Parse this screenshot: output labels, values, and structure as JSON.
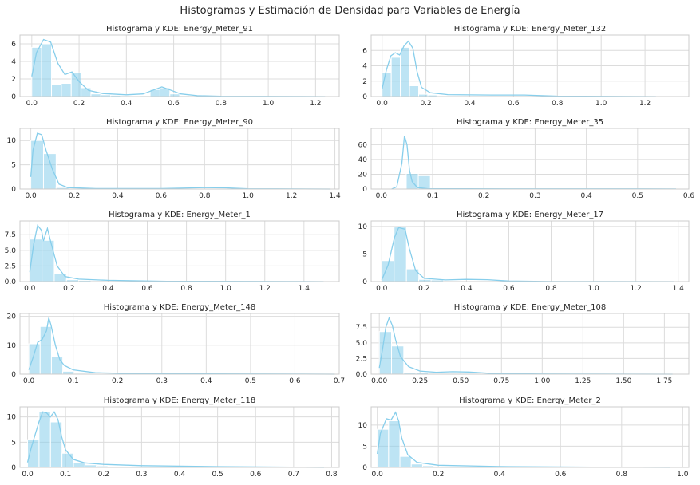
{
  "title": "Histogramas y Estimación de Densidad para Variables de Energía",
  "colors": {
    "bar": "#87ceeb",
    "bar_edge": "#ffffff",
    "kde": "#87ceeb",
    "grid": "#dcdcdc",
    "axis_edge": "#cccccc"
  },
  "chart_data": [
    {
      "type": "bar",
      "title": "Histograma y KDE: Energy_Meter_91",
      "xticks": [
        "0.0",
        "0.2",
        "0.4",
        "0.6",
        "0.8",
        "1.0",
        "1.2"
      ],
      "xlim": [
        -0.05,
        1.3
      ],
      "yticks": [
        "0",
        "2",
        "4",
        "6"
      ],
      "ylim": [
        0,
        7
      ],
      "bins": {
        "start": 0,
        "width": 0.0417,
        "values": [
          5.6,
          6.0,
          1.4,
          1.5,
          2.7,
          1.0,
          0.3,
          0.2,
          0.15,
          0.1,
          0.05,
          0.1,
          0.8,
          1.0,
          0.3,
          0.1
        ]
      },
      "kde": [
        [
          0,
          2.3
        ],
        [
          0.02,
          5.0
        ],
        [
          0.05,
          6.5
        ],
        [
          0.08,
          6.2
        ],
        [
          0.11,
          3.8
        ],
        [
          0.14,
          2.5
        ],
        [
          0.17,
          2.8
        ],
        [
          0.2,
          1.7
        ],
        [
          0.24,
          0.7
        ],
        [
          0.3,
          0.35
        ],
        [
          0.4,
          0.2
        ],
        [
          0.47,
          0.3
        ],
        [
          0.52,
          0.8
        ],
        [
          0.55,
          1.1
        ],
        [
          0.58,
          0.8
        ],
        [
          0.63,
          0.3
        ],
        [
          0.7,
          0.1
        ],
        [
          0.8,
          0.03
        ],
        [
          1.24,
          0
        ]
      ]
    },
    {
      "type": "bar",
      "title": "Histograma y KDE: Energy_Meter_132",
      "xticks": [
        "0.0",
        "0.2",
        "0.4",
        "0.6",
        "0.8",
        "1.0",
        "1.2"
      ],
      "xlim": [
        -0.05,
        1.4
      ],
      "yticks": [
        "0",
        "2",
        "4",
        "6"
      ],
      "ylim": [
        0,
        8
      ],
      "bins": {
        "start": 0,
        "width": 0.0417,
        "values": [
          3.1,
          5.1,
          6.4,
          1.4,
          0.3,
          0.2,
          0.1,
          0.1
        ]
      },
      "kde": [
        [
          0,
          1.0
        ],
        [
          0.02,
          3.5
        ],
        [
          0.04,
          5.3
        ],
        [
          0.06,
          5.7
        ],
        [
          0.08,
          5.4
        ],
        [
          0.1,
          6.6
        ],
        [
          0.12,
          7.2
        ],
        [
          0.14,
          6.3
        ],
        [
          0.16,
          3.2
        ],
        [
          0.18,
          1.2
        ],
        [
          0.22,
          0.5
        ],
        [
          0.3,
          0.25
        ],
        [
          0.5,
          0.2
        ],
        [
          0.65,
          0.2
        ],
        [
          0.8,
          0.05
        ],
        [
          1.25,
          0
        ]
      ]
    },
    {
      "type": "bar",
      "title": "Histograma y KDE: Energy_Meter_90",
      "xticks": [
        "0.0",
        "0.2",
        "0.4",
        "0.6",
        "0.8",
        "1.0",
        "1.2",
        "1.4"
      ],
      "xlim": [
        -0.05,
        1.42
      ],
      "yticks": [
        "0",
        "5",
        "10"
      ],
      "ylim": [
        0,
        12.5
      ],
      "bins": {
        "start": 0,
        "width": 0.0583,
        "values": [
          10.0,
          7.3,
          0.3,
          0.05
        ]
      },
      "kde": [
        [
          0,
          2.5
        ],
        [
          0.01,
          8
        ],
        [
          0.03,
          11.5
        ],
        [
          0.05,
          11.2
        ],
        [
          0.07,
          8
        ],
        [
          0.1,
          4
        ],
        [
          0.13,
          1
        ],
        [
          0.17,
          0.3
        ],
        [
          0.3,
          0.1
        ],
        [
          0.6,
          0.1
        ],
        [
          0.8,
          0.3
        ],
        [
          0.9,
          0.25
        ],
        [
          1.0,
          0.05
        ],
        [
          1.38,
          0
        ]
      ]
    },
    {
      "type": "bar",
      "title": "Histograma y KDE: Energy_Meter_35",
      "xticks": [
        "0.0",
        "0.1",
        "0.2",
        "0.3",
        "0.4",
        "0.5",
        "0.6"
      ],
      "xlim": [
        -0.02,
        0.6
      ],
      "yticks": [
        "0",
        "20",
        "40",
        "60"
      ],
      "ylim": [
        0,
        82
      ],
      "bins": {
        "start": 0.025,
        "width": 0.0235,
        "values": [
          1.0,
          21.0,
          18.0,
          0.5
        ]
      },
      "kde": [
        [
          0.02,
          0
        ],
        [
          0.03,
          3
        ],
        [
          0.04,
          35
        ],
        [
          0.045,
          72
        ],
        [
          0.05,
          60
        ],
        [
          0.055,
          25
        ],
        [
          0.06,
          10
        ],
        [
          0.07,
          2
        ],
        [
          0.09,
          0.5
        ],
        [
          0.3,
          0.2
        ],
        [
          0.5,
          0.2
        ],
        [
          0.575,
          0.1
        ]
      ]
    },
    {
      "type": "bar",
      "title": "Histograma y KDE: Energy_Meter_1",
      "xticks": [
        "0.0",
        "0.2",
        "0.4",
        "0.6",
        "0.8",
        "1.0",
        "1.2",
        "1.4"
      ],
      "xlim": [
        -0.05,
        1.58
      ],
      "yticks": [
        "0.0",
        "2.5",
        "5.0",
        "7.5"
      ],
      "ylim": [
        0,
        9.7
      ],
      "bins": {
        "start": 0,
        "width": 0.0625,
        "values": [
          6.8,
          6.6,
          1.3,
          0.3,
          0.2
        ]
      },
      "kde": [
        [
          0,
          1.5
        ],
        [
          0.02,
          6
        ],
        [
          0.04,
          9.0
        ],
        [
          0.06,
          8.2
        ],
        [
          0.07,
          6.5
        ],
        [
          0.08,
          7.5
        ],
        [
          0.09,
          8.5
        ],
        [
          0.11,
          6
        ],
        [
          0.14,
          2.5
        ],
        [
          0.18,
          0.8
        ],
        [
          0.25,
          0.4
        ],
        [
          0.4,
          0.2
        ],
        [
          0.7,
          0.05
        ],
        [
          1.5,
          0
        ]
      ]
    },
    {
      "type": "bar",
      "title": "Histograma y KDE: Energy_Meter_17",
      "xticks": [
        "0.0",
        "0.2",
        "0.4",
        "0.6",
        "0.8",
        "1.0",
        "1.2",
        "1.4"
      ],
      "xlim": [
        -0.05,
        1.45
      ],
      "yticks": [
        "0",
        "5",
        "10"
      ],
      "ylim": [
        0,
        11
      ],
      "bins": {
        "start": 0,
        "width": 0.0583,
        "values": [
          3.8,
          9.9,
          2.3,
          0.4,
          0.3
        ]
      },
      "kde": [
        [
          0,
          0.3
        ],
        [
          0.03,
          3
        ],
        [
          0.06,
          8
        ],
        [
          0.08,
          9.8
        ],
        [
          0.11,
          9.5
        ],
        [
          0.13,
          6
        ],
        [
          0.16,
          2
        ],
        [
          0.2,
          0.6
        ],
        [
          0.3,
          0.3
        ],
        [
          0.4,
          0.4
        ],
        [
          0.5,
          0.35
        ],
        [
          0.6,
          0.1
        ],
        [
          0.8,
          0.02
        ],
        [
          1.38,
          0
        ]
      ]
    },
    {
      "type": "bar",
      "title": "Histograma y KDE: Energy_Meter_148",
      "xticks": [
        "0.0",
        "0.1",
        "0.2",
        "0.3",
        "0.4",
        "0.5",
        "0.6",
        "0.7"
      ],
      "xlim": [
        -0.02,
        0.7
      ],
      "yticks": [
        "0",
        "10",
        "20"
      ],
      "ylim": [
        0,
        21
      ],
      "bins": {
        "start": 0,
        "width": 0.0255,
        "values": [
          10.5,
          16.5,
          6.2,
          1.0,
          0.3,
          0.2,
          0.1
        ]
      },
      "kde": [
        [
          0,
          1.5
        ],
        [
          0.01,
          6
        ],
        [
          0.02,
          11
        ],
        [
          0.03,
          12
        ],
        [
          0.04,
          15
        ],
        [
          0.045,
          19.5
        ],
        [
          0.05,
          17
        ],
        [
          0.06,
          10
        ],
        [
          0.07,
          5
        ],
        [
          0.08,
          3
        ],
        [
          0.1,
          1.5
        ],
        [
          0.15,
          0.5
        ],
        [
          0.25,
          0.2
        ],
        [
          0.4,
          0.1
        ],
        [
          0.69,
          0
        ]
      ]
    },
    {
      "type": "bar",
      "title": "Histograma y KDE: Energy_Meter_108",
      "xticks": [
        "0.00",
        "0.25",
        "0.50",
        "0.75",
        "1.00",
        "1.25",
        "1.50",
        "1.75"
      ],
      "xlim": [
        -0.05,
        1.9
      ],
      "yticks": [
        "0.0",
        "2.5",
        "5.0",
        "7.5"
      ],
      "ylim": [
        0,
        9.7
      ],
      "bins": {
        "start": 0,
        "width": 0.075,
        "values": [
          6.8,
          4.5,
          0.3,
          0.2
        ]
      },
      "kde": [
        [
          0,
          1
        ],
        [
          0.02,
          4
        ],
        [
          0.04,
          7.5
        ],
        [
          0.06,
          9.0
        ],
        [
          0.08,
          7.8
        ],
        [
          0.1,
          5.5
        ],
        [
          0.13,
          2.8
        ],
        [
          0.18,
          1.2
        ],
        [
          0.25,
          0.5
        ],
        [
          0.35,
          0.3
        ],
        [
          0.45,
          0.4
        ],
        [
          0.55,
          0.35
        ],
        [
          0.7,
          0.1
        ],
        [
          1.0,
          0.02
        ],
        [
          1.8,
          0
        ]
      ]
    },
    {
      "type": "bar",
      "title": "Histograma y KDE: Energy_Meter_118",
      "xticks": [
        "0.0",
        "0.1",
        "0.2",
        "0.3",
        "0.4",
        "0.5",
        "0.6",
        "0.7",
        "0.8"
      ],
      "xlim": [
        -0.02,
        0.82
      ],
      "yticks": [
        "0",
        "5",
        "10"
      ],
      "ylim": [
        0,
        12
      ],
      "bins": {
        "start": 0,
        "width": 0.0302,
        "values": [
          5.5,
          11.0,
          9.0,
          2.8,
          1.0,
          0.5,
          0.3
        ]
      },
      "kde": [
        [
          0,
          1
        ],
        [
          0.01,
          4
        ],
        [
          0.03,
          9
        ],
        [
          0.04,
          11
        ],
        [
          0.05,
          10.8
        ],
        [
          0.06,
          10
        ],
        [
          0.07,
          11
        ],
        [
          0.08,
          9.5
        ],
        [
          0.09,
          6
        ],
        [
          0.1,
          3.5
        ],
        [
          0.12,
          1.6
        ],
        [
          0.15,
          0.9
        ],
        [
          0.2,
          0.6
        ],
        [
          0.3,
          0.35
        ],
        [
          0.5,
          0.15
        ],
        [
          0.78,
          0
        ]
      ]
    },
    {
      "type": "bar",
      "title": "Histograma y KDE: Energy_Meter_2",
      "xticks": [
        "0.0",
        "0.2",
        "0.4",
        "0.6",
        "0.8",
        "1.0"
      ],
      "xlim": [
        -0.02,
        1.02
      ],
      "yticks": [
        "0",
        "5",
        "10"
      ],
      "ylim": [
        0,
        14.3
      ],
      "bins": {
        "start": 0,
        "width": 0.0371,
        "values": [
          9.0,
          11.0,
          2.6,
          0.8,
          0.4
        ]
      },
      "kde": [
        [
          0,
          3.2
        ],
        [
          0.01,
          8
        ],
        [
          0.03,
          11.5
        ],
        [
          0.045,
          11.2
        ],
        [
          0.06,
          13.0
        ],
        [
          0.07,
          11
        ],
        [
          0.08,
          7
        ],
        [
          0.1,
          3
        ],
        [
          0.13,
          1.2
        ],
        [
          0.2,
          0.5
        ],
        [
          0.4,
          0.2
        ],
        [
          0.7,
          0.05
        ],
        [
          0.96,
          0
        ]
      ]
    }
  ]
}
